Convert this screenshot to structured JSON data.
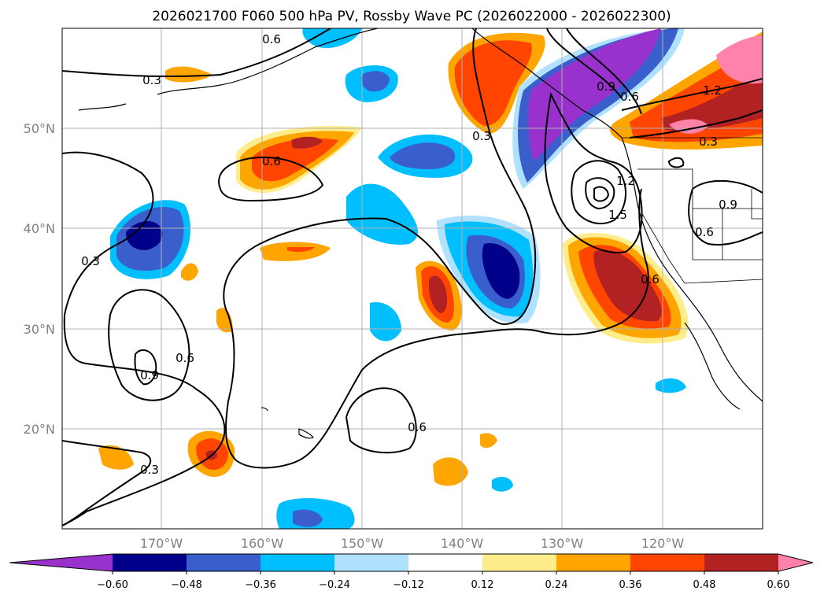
{
  "title": "2026021700 F060 500 hPa PV, Rossby Wave PC (2026022000 - 2026022300)",
  "lat_labels": [
    "50°N",
    "40°N",
    "30°N",
    "20°N"
  ],
  "lon_labels": [
    "170°W",
    "160°W",
    "150°W",
    "140°W",
    "130°W",
    "120°W"
  ],
  "colorbar": {
    "ticks": [
      "−0.60",
      "−0.48",
      "−0.36",
      "−0.24",
      "−0.12",
      "0.12",
      "0.24",
      "0.36",
      "0.48",
      "0.60"
    ],
    "colors": [
      "#9932cc",
      "#00008b",
      "#3a5fcd",
      "#00bfff",
      "#b0e2ff",
      "#ffffff",
      "#ffec8b",
      "#ffa500",
      "#ff4500",
      "#b22222",
      "#ff82ab"
    ]
  },
  "contour_labels": [
    "0.3",
    "0.6",
    "0.3",
    "0.6",
    "0.9",
    "0.6",
    "0.3",
    "0.6",
    "0.3",
    "0.6",
    "0.9",
    "1.2",
    "1.5",
    "0.6",
    "1.2",
    "0.9",
    "0.6",
    "0.3"
  ]
}
